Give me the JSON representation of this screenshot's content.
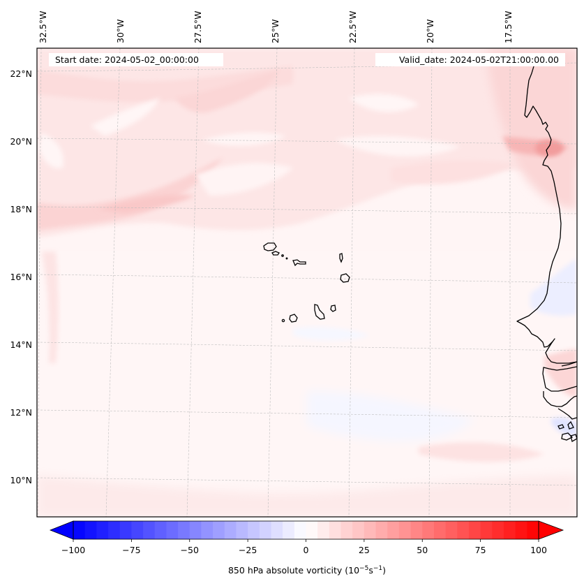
{
  "chart_data": {
    "type": "heatmap",
    "title": "850 hPa absolute vorticity map",
    "header": {
      "start_date": "Start date: 2024-05-02_00:00:00",
      "valid_date": "Valid_date: 2024-05-02T21:00:00.00"
    },
    "lon_ticks": [
      "32.5°W",
      "30°W",
      "27.5°W",
      "25°W",
      "22.5°W",
      "20°W",
      "17.5°W"
    ],
    "lat_ticks": [
      "22°N",
      "20°N",
      "18°N",
      "16°N",
      "14°N",
      "12°N",
      "10°N"
    ],
    "lon_range": [
      -32.7,
      -14.8
    ],
    "lat_range": [
      8.9,
      22.7
    ],
    "grid": true,
    "colorbar": {
      "label_main": "850 hPa absolute vorticity (10",
      "label_exp1": "−5",
      "label_mid": "s",
      "label_exp2": "−1",
      "label_end": ")",
      "ticks": [
        "−100",
        "−75",
        "−50",
        "−25",
        "0",
        "25",
        "50",
        "75",
        "100"
      ],
      "tick_values": [
        -100,
        -75,
        -50,
        -25,
        0,
        25,
        50,
        75,
        100
      ],
      "vmin": -100,
      "vmax": 100,
      "levels": 40,
      "extend": "both",
      "cmap": "bwr",
      "color_min": "#0000ff",
      "color_mid": "#ffffff",
      "color_max": "#ff0000"
    },
    "field_description": "Weak positive absolute vorticity (roughly 0 to 20) across most of the domain with bands of 5–15 in the north-west, a local maximum near 20–25 along the Mauritanian coast around 19.5°N 16.3°W, and weakly negative (−5 to 0) patches off the West African coast south of 15°N",
    "features": [
      "Cape Verde Islands",
      "West African coastline (Mauritania, Senegal, Gambia, Guinea-Bissau)"
    ]
  }
}
